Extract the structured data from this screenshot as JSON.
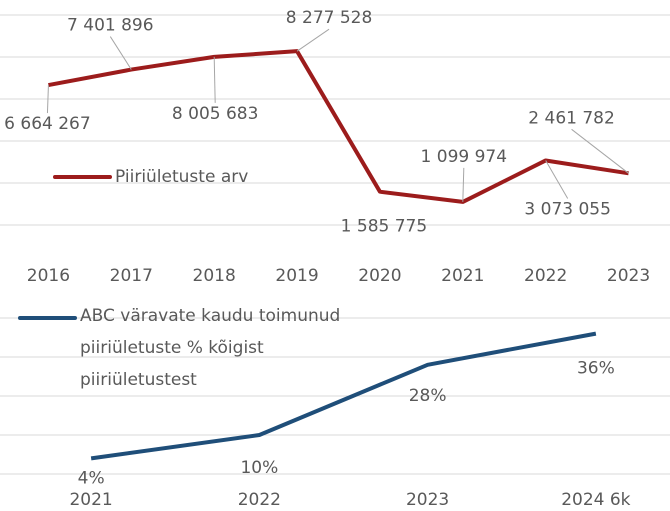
{
  "chart_data": [
    {
      "type": "line",
      "categories": [
        "2016",
        "2017",
        "2018",
        "2019",
        "2020",
        "2021",
        "2022",
        "2023"
      ],
      "series": [
        {
          "name": "Piiriületuste arv",
          "color": "#9c1c1c",
          "values": [
            6664267,
            7401896,
            8005683,
            8277528,
            1585775,
            1099974,
            3073055,
            2461782
          ],
          "value_labels": [
            "6 664 267",
            "7 401 896",
            "8 005 683",
            "8 277 528",
            "1 585 775",
            "1 099 974",
            "3 073 055",
            "2 461 782"
          ]
        }
      ],
      "ylim": [
        0,
        10000000
      ],
      "yticks": [
        0,
        2000000,
        4000000,
        6000000,
        8000000,
        10000000
      ],
      "grid": true
    },
    {
      "type": "line",
      "categories": [
        "2021",
        "2022",
        "2023",
        "2024 6k"
      ],
      "series": [
        {
          "name": "ABC väravate kaudu toimunud piiriületuste % kõigist piiriületustest",
          "color": "#1f4e79",
          "values": [
            4,
            10,
            28,
            36
          ],
          "value_labels": [
            "4%",
            "10%",
            "28%",
            "36%"
          ]
        }
      ],
      "ylim": [
        0,
        40
      ],
      "yticks": [
        0,
        10,
        20,
        30,
        40
      ],
      "grid": true
    }
  ]
}
